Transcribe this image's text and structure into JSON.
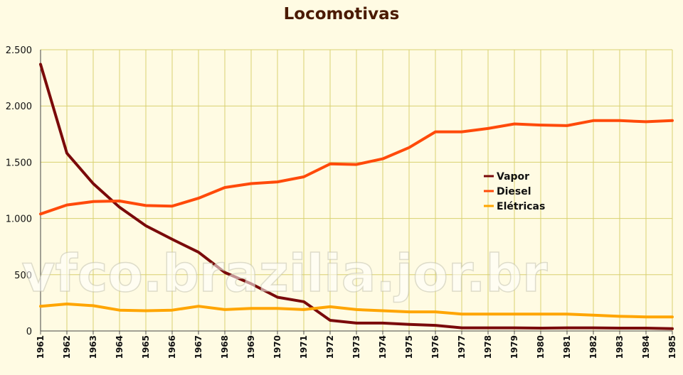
{
  "watermark": "vfco.brazilia.jor.br",
  "colors": {
    "background": "#fffbe3",
    "grid": "#d8d070"
  },
  "chart_data": {
    "type": "line",
    "title": "Locomotivas",
    "xlabel": "",
    "ylabel": "",
    "ylim": [
      0,
      2500
    ],
    "y_ticks": [
      0,
      500,
      1000,
      1500,
      2000,
      2500
    ],
    "y_tick_labels": [
      "0",
      "500",
      "1.000",
      "1.500",
      "2.000",
      "2.500"
    ],
    "categories": [
      "1961",
      "1962",
      "1963",
      "1964",
      "1965",
      "1966",
      "1967",
      "1968",
      "1969",
      "1970",
      "1971",
      "1972",
      "1973",
      "1974",
      "1975",
      "1976",
      "1977",
      "1978",
      "1979",
      "1980",
      "1981",
      "1982",
      "1983",
      "1984",
      "1985"
    ],
    "grid": true,
    "legend_position": "center-right",
    "series": [
      {
        "name": "Vapor",
        "color": "#7a0a0a",
        "values": [
          2370,
          1580,
          1310,
          1100,
          935,
          815,
          700,
          520,
          420,
          300,
          260,
          95,
          70,
          70,
          58,
          50,
          28,
          28,
          28,
          25,
          28,
          28,
          25,
          25,
          20
        ]
      },
      {
        "name": "Diesel",
        "color": "#ff4a0a",
        "values": [
          1040,
          1120,
          1150,
          1155,
          1115,
          1110,
          1180,
          1275,
          1310,
          1325,
          1370,
          1485,
          1480,
          1530,
          1630,
          1770,
          1770,
          1800,
          1840,
          1830,
          1825,
          1870,
          1870,
          1860,
          1870
        ]
      },
      {
        "name": "Elétricas",
        "color": "#ffa500",
        "values": [
          220,
          240,
          225,
          185,
          180,
          185,
          220,
          190,
          200,
          200,
          190,
          215,
          190,
          180,
          170,
          170,
          150,
          150,
          150,
          150,
          150,
          140,
          130,
          125,
          125
        ]
      }
    ]
  }
}
